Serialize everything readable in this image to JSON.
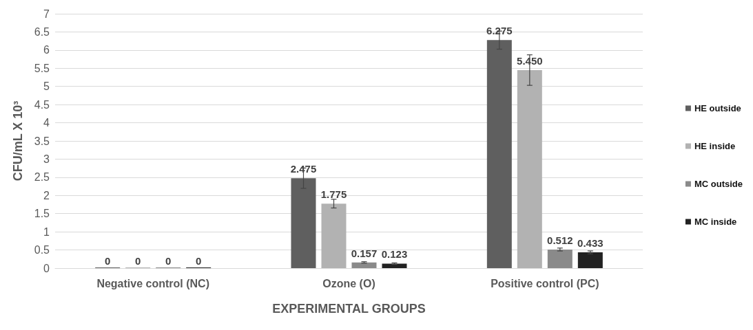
{
  "chart_data": {
    "type": "bar",
    "xlabel": "EXPERIMENTAL GROUPS",
    "ylabel": "CFU/mL X 10³",
    "categories": [
      "Negative control (NC)",
      "Ozone (O)",
      "Positive control (PC)"
    ],
    "series": [
      {
        "name": "HE outside",
        "color": "#5f5f5f",
        "values": [
          0,
          2.475,
          6.275
        ],
        "errors": [
          null,
          0.28,
          0.25
        ],
        "value_labels": [
          "0",
          "2.475",
          "6.275"
        ]
      },
      {
        "name": "HE inside",
        "color": "#b2b2b2",
        "values": [
          0,
          1.775,
          5.45
        ],
        "errors": [
          null,
          0.12,
          0.42
        ],
        "value_labels": [
          "0",
          "1.775",
          "5.450"
        ]
      },
      {
        "name": "MC outside",
        "color": "#8a8a8a",
        "values": [
          0,
          0.157,
          0.512
        ],
        "errors": [
          null,
          0.02,
          0.04
        ],
        "value_labels": [
          "0",
          "0.157",
          "0.512"
        ]
      },
      {
        "name": "MC inside",
        "color": "#222222",
        "values": [
          0,
          0.123,
          0.433
        ],
        "errors": [
          null,
          0.02,
          0.04
        ],
        "value_labels": [
          "0",
          "0.123",
          "0.433"
        ]
      }
    ],
    "ylim": [
      0,
      7
    ],
    "yticks": [
      0,
      0.5,
      1,
      1.5,
      2,
      2.5,
      3,
      3.5,
      4,
      4.5,
      5,
      5.5,
      6,
      6.5,
      7
    ],
    "grid": "y",
    "legend": "right"
  }
}
